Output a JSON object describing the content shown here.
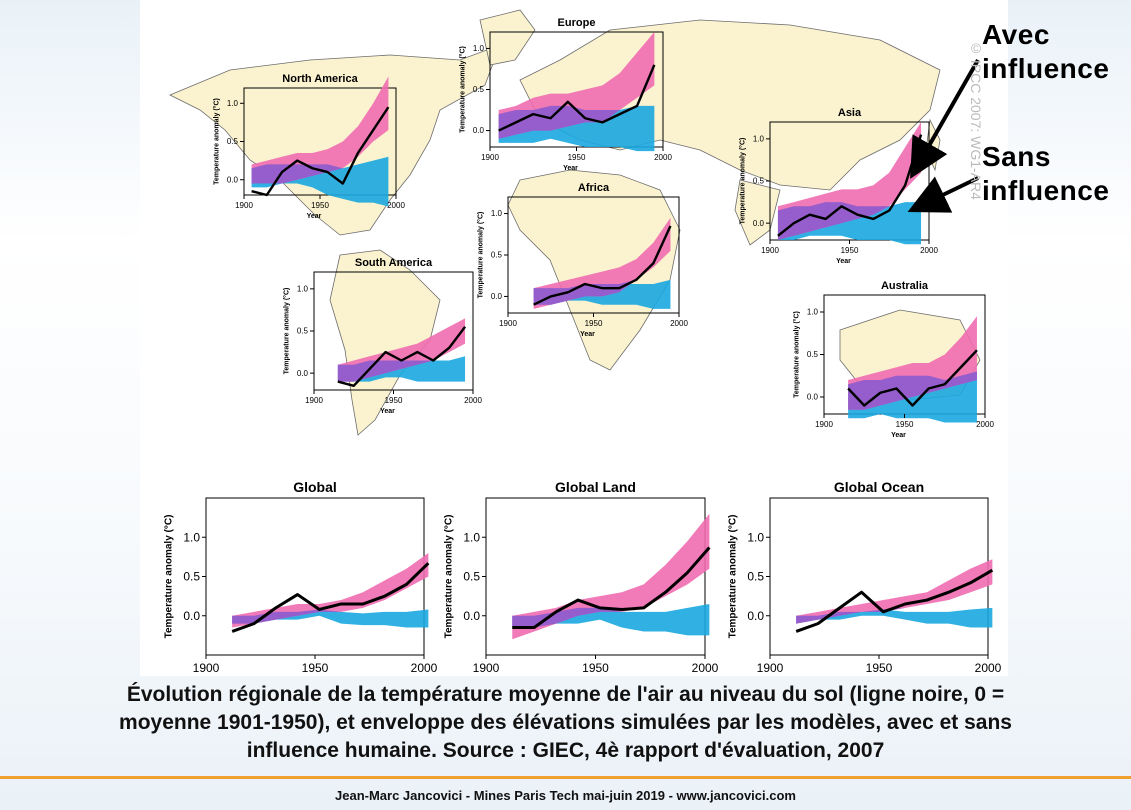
{
  "annotations": {
    "with_line1": "Avec",
    "with_line2": "influence",
    "without_line1": "Sans",
    "without_line2": "influence"
  },
  "caption": {
    "line1": "Évolution régionale de la température moyenne de l'air au niveau du sol (ligne noire, 0 =",
    "line2": "moyenne 1901-1950), et enveloppe des élévations simulées par les modèles, avec et sans",
    "line3": "influence humaine. Source : GIEC, 4è rapport d'évaluation, 2007"
  },
  "footer": "Jean-Marc Jancovici - Mines Paris Tech mai-juin 2019 - www.jancovici.com",
  "watermark": "© IPCC 2007: WG1-AR4",
  "colors": {
    "observed": "#000000",
    "with_human": "#f06cb0",
    "natural_only": "#1aa7e0",
    "overlap": "#8a5ad0",
    "land": "#fbf3cf",
    "ocean": "#ffffff",
    "arrow": "#000000"
  },
  "chart_data": [
    {
      "type": "line",
      "title": "North America",
      "xlabel": "Year",
      "ylabel": "Temperature anomaly (°C)",
      "xlim": [
        1900,
        2000
      ],
      "ylim": [
        -0.2,
        1.2
      ],
      "xticks": [
        1900,
        1950,
        2000
      ],
      "yticks": [
        0.0,
        0.5,
        1.0
      ],
      "x": [
        1905,
        1915,
        1925,
        1935,
        1945,
        1955,
        1965,
        1975,
        1985,
        1995
      ],
      "observed": [
        -0.15,
        -0.2,
        0.1,
        0.25,
        0.15,
        0.1,
        -0.05,
        0.35,
        0.65,
        0.95
      ],
      "with_human_low": [
        -0.05,
        -0.05,
        -0.05,
        0.0,
        0.05,
        0.1,
        0.15,
        0.3,
        0.5,
        0.65
      ],
      "with_human_high": [
        0.2,
        0.25,
        0.3,
        0.35,
        0.35,
        0.4,
        0.5,
        0.7,
        1.0,
        1.35
      ],
      "natural_low": [
        -0.1,
        -0.1,
        -0.05,
        -0.05,
        -0.1,
        -0.2,
        -0.25,
        -0.3,
        -0.3,
        -0.35
      ],
      "natural_high": [
        0.15,
        0.2,
        0.2,
        0.2,
        0.2,
        0.2,
        0.15,
        0.2,
        0.25,
        0.3
      ]
    },
    {
      "type": "line",
      "title": "Europe",
      "xlabel": "Year",
      "ylabel": "Temperature anomaly (°C)",
      "xlim": [
        1900,
        2000
      ],
      "ylim": [
        -0.2,
        1.2
      ],
      "xticks": [
        1900,
        1950,
        2000
      ],
      "yticks": [
        0.0,
        0.5,
        1.0
      ],
      "x": [
        1905,
        1915,
        1925,
        1935,
        1945,
        1955,
        1965,
        1975,
        1985,
        1995
      ],
      "observed": [
        0.0,
        0.1,
        0.2,
        0.15,
        0.35,
        0.15,
        0.1,
        0.2,
        0.3,
        0.8
      ],
      "with_human_low": [
        -0.1,
        -0.05,
        0.0,
        0.0,
        0.05,
        0.1,
        0.1,
        0.25,
        0.4,
        0.55
      ],
      "with_human_high": [
        0.25,
        0.3,
        0.4,
        0.45,
        0.45,
        0.5,
        0.55,
        0.7,
        0.95,
        1.2
      ],
      "natural_low": [
        -0.15,
        -0.15,
        -0.15,
        -0.1,
        -0.15,
        -0.2,
        -0.2,
        -0.2,
        -0.25,
        -0.25
      ],
      "natural_high": [
        0.2,
        0.25,
        0.25,
        0.3,
        0.3,
        0.25,
        0.25,
        0.25,
        0.3,
        0.3
      ]
    },
    {
      "type": "line",
      "title": "Asia",
      "xlabel": "Year",
      "ylabel": "Temperature anomaly (°C)",
      "xlim": [
        1900,
        2000
      ],
      "ylim": [
        -0.2,
        1.2
      ],
      "xticks": [
        1900,
        1950,
        2000
      ],
      "yticks": [
        0.0,
        0.5,
        1.0
      ],
      "x": [
        1905,
        1915,
        1925,
        1935,
        1945,
        1955,
        1965,
        1975,
        1985,
        1995
      ],
      "observed": [
        -0.15,
        0.0,
        0.1,
        0.05,
        0.2,
        0.1,
        0.05,
        0.15,
        0.45,
        1.05
      ],
      "with_human_low": [
        -0.2,
        -0.15,
        -0.1,
        -0.05,
        0.0,
        0.05,
        0.1,
        0.2,
        0.4,
        0.6
      ],
      "with_human_high": [
        0.2,
        0.25,
        0.3,
        0.35,
        0.4,
        0.4,
        0.45,
        0.6,
        0.9,
        1.2
      ],
      "natural_low": [
        -0.2,
        -0.2,
        -0.15,
        -0.15,
        -0.15,
        -0.2,
        -0.2,
        -0.2,
        -0.25,
        -0.25
      ],
      "natural_high": [
        0.15,
        0.2,
        0.2,
        0.25,
        0.25,
        0.2,
        0.2,
        0.2,
        0.25,
        0.25
      ]
    },
    {
      "type": "line",
      "title": "Africa",
      "xlabel": "Year",
      "ylabel": "Temperature anomaly (°C)",
      "xlim": [
        1900,
        2000
      ],
      "ylim": [
        -0.2,
        1.2
      ],
      "xticks": [
        1900,
        1950,
        2000
      ],
      "yticks": [
        0.0,
        0.5,
        1.0
      ],
      "x": [
        1915,
        1925,
        1935,
        1945,
        1955,
        1965,
        1975,
        1985,
        1995
      ],
      "observed": [
        -0.1,
        0.0,
        0.05,
        0.15,
        0.1,
        0.1,
        0.2,
        0.4,
        0.85
      ],
      "with_human_low": [
        -0.15,
        -0.1,
        -0.05,
        0.0,
        0.0,
        0.05,
        0.2,
        0.35,
        0.55
      ],
      "with_human_high": [
        0.1,
        0.15,
        0.2,
        0.25,
        0.3,
        0.35,
        0.45,
        0.65,
        0.95
      ],
      "natural_low": [
        -0.1,
        -0.1,
        -0.05,
        -0.05,
        -0.1,
        -0.1,
        -0.1,
        -0.15,
        -0.15
      ],
      "natural_high": [
        0.1,
        0.1,
        0.1,
        0.15,
        0.15,
        0.15,
        0.15,
        0.15,
        0.2
      ]
    },
    {
      "type": "line",
      "title": "South America",
      "xlabel": "Year",
      "ylabel": "Temperature anomaly (°C)",
      "xlim": [
        1900,
        2000
      ],
      "ylim": [
        -0.2,
        1.2
      ],
      "xticks": [
        1900,
        1950,
        2000
      ],
      "yticks": [
        0.0,
        0.5,
        1.0
      ],
      "x": [
        1915,
        1925,
        1935,
        1945,
        1955,
        1965,
        1975,
        1985,
        1995
      ],
      "observed": [
        -0.1,
        -0.15,
        0.05,
        0.25,
        0.15,
        0.25,
        0.15,
        0.3,
        0.55
      ],
      "with_human_low": [
        -0.1,
        -0.1,
        -0.05,
        0.0,
        0.05,
        0.1,
        0.15,
        0.25,
        0.35
      ],
      "with_human_high": [
        0.1,
        0.15,
        0.2,
        0.25,
        0.3,
        0.35,
        0.45,
        0.55,
        0.65
      ],
      "natural_low": [
        -0.1,
        -0.1,
        -0.1,
        -0.05,
        -0.05,
        -0.1,
        -0.1,
        -0.1,
        -0.1
      ],
      "natural_high": [
        0.1,
        0.1,
        0.15,
        0.15,
        0.15,
        0.15,
        0.15,
        0.15,
        0.2
      ]
    },
    {
      "type": "line",
      "title": "Australia",
      "xlabel": "Year",
      "ylabel": "Temperature anomaly (°C)",
      "xlim": [
        1900,
        2000
      ],
      "ylim": [
        -0.2,
        1.2
      ],
      "xticks": [
        1900,
        1950,
        2000
      ],
      "yticks": [
        0.0,
        0.5,
        1.0
      ],
      "x": [
        1915,
        1925,
        1935,
        1945,
        1955,
        1965,
        1975,
        1985,
        1995
      ],
      "observed": [
        0.1,
        -0.1,
        0.05,
        0.1,
        -0.1,
        0.1,
        0.15,
        0.35,
        0.55
      ],
      "with_human_low": [
        -0.15,
        -0.15,
        -0.1,
        -0.05,
        0.0,
        0.05,
        0.1,
        0.15,
        0.2
      ],
      "with_human_high": [
        0.2,
        0.25,
        0.3,
        0.35,
        0.4,
        0.4,
        0.5,
        0.7,
        0.95
      ],
      "natural_low": [
        -0.25,
        -0.25,
        -0.2,
        -0.25,
        -0.25,
        -0.25,
        -0.3,
        -0.3,
        -0.3
      ],
      "natural_high": [
        0.15,
        0.2,
        0.2,
        0.25,
        0.25,
        0.25,
        0.2,
        0.25,
        0.3
      ]
    },
    {
      "type": "line",
      "title": "Global",
      "xlabel": "Year",
      "ylabel": "Temperature anomaly (°C)",
      "xlim": [
        1900,
        2000
      ],
      "ylim": [
        -0.5,
        1.5
      ],
      "xticks": [
        1900,
        1950,
        2000
      ],
      "yticks": [
        0.0,
        0.5,
        1.0
      ],
      "x": [
        1912,
        1922,
        1932,
        1942,
        1952,
        1962,
        1972,
        1982,
        1992,
        2002
      ],
      "observed": [
        -0.2,
        -0.1,
        0.1,
        0.27,
        0.08,
        0.15,
        0.15,
        0.25,
        0.4,
        0.67
      ],
      "with_human_low": [
        -0.15,
        -0.1,
        -0.05,
        0.0,
        0.05,
        0.05,
        0.1,
        0.2,
        0.35,
        0.5
      ],
      "with_human_high": [
        0.0,
        0.05,
        0.1,
        0.15,
        0.15,
        0.2,
        0.3,
        0.45,
        0.6,
        0.8
      ],
      "natural_low": [
        -0.1,
        -0.1,
        -0.05,
        -0.05,
        0.0,
        -0.1,
        -0.12,
        -0.12,
        -0.15,
        -0.15
      ],
      "natural_high": [
        0.0,
        0.0,
        0.05,
        0.05,
        0.08,
        0.05,
        0.03,
        0.05,
        0.05,
        0.08
      ]
    },
    {
      "type": "line",
      "title": "Global Land",
      "xlabel": "Year",
      "ylabel": "Temperature anomaly (°C)",
      "xlim": [
        1900,
        2000
      ],
      "ylim": [
        -0.5,
        1.5
      ],
      "xticks": [
        1900,
        1950,
        2000
      ],
      "yticks": [
        0.0,
        0.5,
        1.0
      ],
      "x": [
        1912,
        1922,
        1932,
        1942,
        1952,
        1962,
        1972,
        1982,
        1992,
        2002
      ],
      "observed": [
        -0.15,
        -0.15,
        0.05,
        0.2,
        0.1,
        0.08,
        0.1,
        0.3,
        0.55,
        0.87
      ],
      "with_human_low": [
        -0.3,
        -0.2,
        -0.1,
        0.0,
        0.05,
        0.05,
        0.1,
        0.25,
        0.4,
        0.6
      ],
      "with_human_high": [
        0.0,
        0.05,
        0.1,
        0.2,
        0.25,
        0.3,
        0.4,
        0.65,
        0.95,
        1.3
      ],
      "natural_low": [
        -0.15,
        -0.15,
        -0.1,
        -0.1,
        -0.05,
        -0.15,
        -0.2,
        -0.2,
        -0.25,
        -0.25
      ],
      "natural_high": [
        0.0,
        0.0,
        0.05,
        0.1,
        0.1,
        0.05,
        0.05,
        0.05,
        0.1,
        0.15
      ]
    },
    {
      "type": "line",
      "title": "Global Ocean",
      "xlabel": "Year",
      "ylabel": "Temperature anomaly (°C)",
      "xlim": [
        1900,
        2000
      ],
      "ylim": [
        -0.5,
        1.5
      ],
      "xticks": [
        1900,
        1950,
        2000
      ],
      "yticks": [
        0.0,
        0.5,
        1.0
      ],
      "x": [
        1912,
        1922,
        1932,
        1942,
        1952,
        1962,
        1972,
        1982,
        1992,
        2002
      ],
      "observed": [
        -0.2,
        -0.1,
        0.1,
        0.3,
        0.05,
        0.15,
        0.2,
        0.3,
        0.42,
        0.58
      ],
      "with_human_low": [
        -0.1,
        -0.05,
        0.0,
        0.05,
        0.05,
        0.1,
        0.15,
        0.2,
        0.3,
        0.4
      ],
      "with_human_high": [
        0.0,
        0.05,
        0.1,
        0.15,
        0.2,
        0.25,
        0.3,
        0.45,
        0.6,
        0.72
      ],
      "natural_low": [
        -0.1,
        -0.05,
        -0.05,
        0.0,
        0.0,
        -0.05,
        -0.1,
        -0.1,
        -0.15,
        -0.15
      ],
      "natural_high": [
        0.0,
        0.0,
        0.05,
        0.05,
        0.08,
        0.05,
        0.05,
        0.05,
        0.08,
        0.1
      ]
    }
  ]
}
